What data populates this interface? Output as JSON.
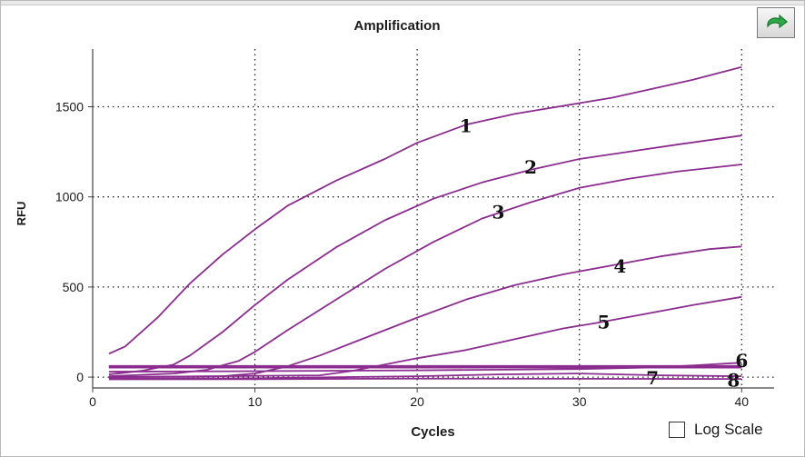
{
  "header": {
    "title": "Amplification",
    "refresh_icon": "green-refresh-arrow-icon"
  },
  "log_scale": {
    "label": "Log Scale",
    "checked": false
  },
  "colors": {
    "curve": "#8B2C8F",
    "grid": "#222222",
    "axis": "#444444",
    "button_accent": "#2fa84a"
  },
  "chart_data": {
    "type": "line",
    "title": "Amplification",
    "xlabel": "Cycles",
    "ylabel": "RFU",
    "xlim": [
      0,
      42
    ],
    "ylim": [
      -60,
      1820
    ],
    "xticks": [
      0,
      10,
      20,
      30,
      40
    ],
    "yticks": [
      0,
      500,
      1000,
      1500
    ],
    "grid": true,
    "grid_style": "dotted",
    "series": [
      {
        "name": "1",
        "label_at": [
          23,
          1400
        ],
        "points": [
          [
            1,
            130
          ],
          [
            2,
            170
          ],
          [
            4,
            330
          ],
          [
            6,
            520
          ],
          [
            8,
            680
          ],
          [
            10,
            820
          ],
          [
            12,
            950
          ],
          [
            15,
            1090
          ],
          [
            18,
            1210
          ],
          [
            20,
            1300
          ],
          [
            23,
            1400
          ],
          [
            26,
            1460
          ],
          [
            30,
            1520
          ],
          [
            32,
            1550
          ],
          [
            35,
            1610
          ],
          [
            37,
            1650
          ],
          [
            40,
            1720
          ]
        ]
      },
      {
        "name": "2",
        "label_at": [
          27,
          1170
        ],
        "points": [
          [
            1,
            15
          ],
          [
            3,
            35
          ],
          [
            5,
            70
          ],
          [
            6,
            120
          ],
          [
            8,
            250
          ],
          [
            10,
            400
          ],
          [
            12,
            540
          ],
          [
            15,
            720
          ],
          [
            18,
            870
          ],
          [
            21,
            990
          ],
          [
            24,
            1080
          ],
          [
            27,
            1150
          ],
          [
            30,
            1210
          ],
          [
            33,
            1250
          ],
          [
            36,
            1290
          ],
          [
            40,
            1340
          ]
        ]
      },
      {
        "name": "3",
        "label_at": [
          25,
          920
        ],
        "points": [
          [
            1,
            5
          ],
          [
            5,
            20
          ],
          [
            7,
            40
          ],
          [
            9,
            90
          ],
          [
            10,
            140
          ],
          [
            12,
            260
          ],
          [
            15,
            430
          ],
          [
            18,
            600
          ],
          [
            21,
            750
          ],
          [
            24,
            880
          ],
          [
            27,
            970
          ],
          [
            30,
            1050
          ],
          [
            33,
            1100
          ],
          [
            36,
            1140
          ],
          [
            40,
            1180
          ]
        ]
      },
      {
        "name": "4",
        "label_at": [
          32.5,
          620
        ],
        "points": [
          [
            1,
            0
          ],
          [
            8,
            5
          ],
          [
            10,
            20
          ],
          [
            12,
            60
          ],
          [
            14,
            120
          ],
          [
            16,
            190
          ],
          [
            18,
            260
          ],
          [
            20,
            330
          ],
          [
            23,
            430
          ],
          [
            26,
            510
          ],
          [
            29,
            570
          ],
          [
            32,
            620
          ],
          [
            35,
            670
          ],
          [
            38,
            710
          ],
          [
            40,
            725
          ]
        ]
      },
      {
        "name": "5",
        "label_at": [
          31.5,
          310
        ],
        "points": [
          [
            1,
            0
          ],
          [
            14,
            10
          ],
          [
            16,
            35
          ],
          [
            18,
            70
          ],
          [
            20,
            105
          ],
          [
            23,
            150
          ],
          [
            26,
            210
          ],
          [
            29,
            270
          ],
          [
            31,
            300
          ],
          [
            34,
            350
          ],
          [
            37,
            400
          ],
          [
            40,
            445
          ]
        ]
      },
      {
        "name": "6",
        "label_at": [
          40,
          95
        ],
        "points": [
          [
            1,
            30
          ],
          [
            10,
            33
          ],
          [
            20,
            38
          ],
          [
            30,
            45
          ],
          [
            35,
            55
          ],
          [
            40,
            80
          ]
        ]
      },
      {
        "name": "7",
        "label_at": [
          34.5,
          0
        ],
        "points": [
          [
            1,
            -8
          ],
          [
            10,
            -6
          ],
          [
            20,
            5
          ],
          [
            25,
            15
          ],
          [
            30,
            20
          ],
          [
            35,
            10
          ],
          [
            40,
            5
          ]
        ]
      },
      {
        "name": "8",
        "label_at": [
          39.5,
          -12
        ],
        "points": [
          [
            1,
            -12
          ],
          [
            10,
            -11
          ],
          [
            20,
            -8
          ],
          [
            30,
            -9
          ],
          [
            40,
            -10
          ]
        ]
      }
    ],
    "threshold_lines": [
      60,
      55
    ]
  }
}
